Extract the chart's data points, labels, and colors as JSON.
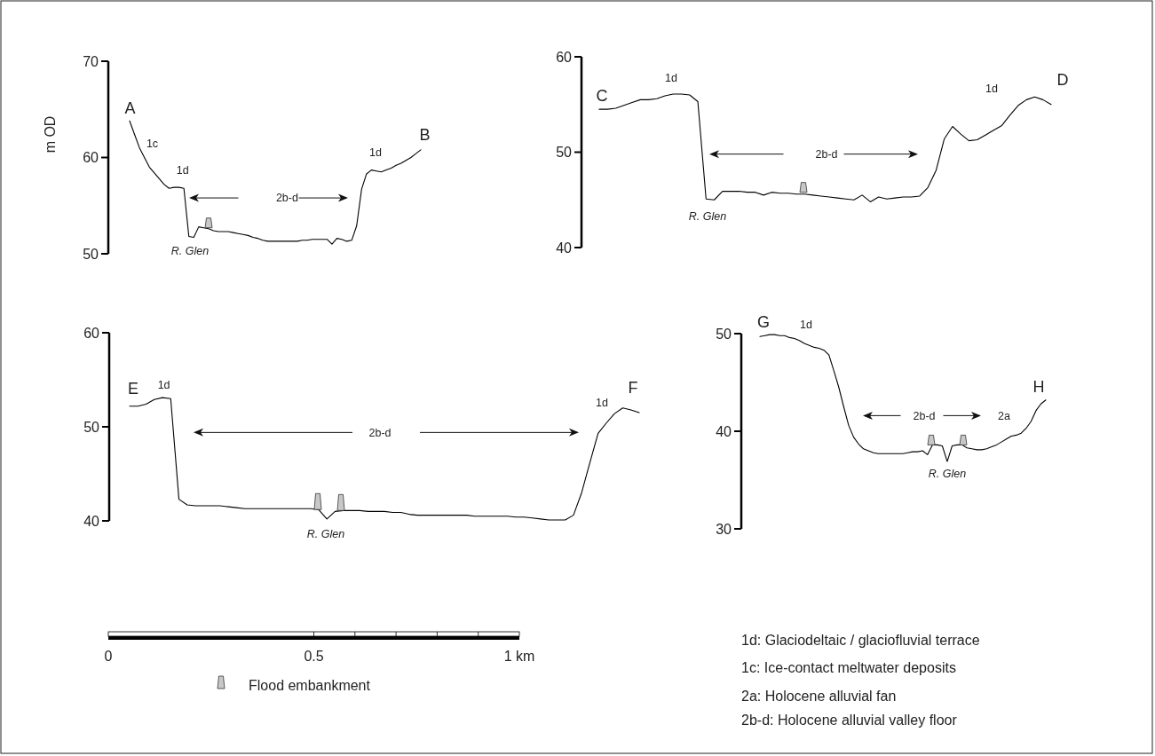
{
  "chart_data": [
    {
      "type": "line",
      "ylabel": "m OD",
      "ylim": [
        50,
        70
      ],
      "yticks": [
        50,
        60,
        70
      ],
      "tick_labels": "y",
      "marker": "none",
      "line_style": "solid",
      "categories": [
        null,
        null,
        null,
        null,
        null,
        null,
        null,
        null,
        null,
        null,
        null,
        null,
        null,
        null,
        null,
        null,
        null,
        null,
        null,
        null,
        null,
        null,
        null,
        null,
        null,
        null,
        null,
        null,
        null,
        null,
        null,
        null,
        null,
        null,
        null,
        null,
        null,
        null,
        null,
        null,
        null,
        null,
        null,
        null,
        null,
        null,
        null,
        null,
        null,
        null,
        null,
        null,
        null,
        null,
        null,
        null,
        null,
        null,
        null,
        null
      ],
      "series": [
        {
          "color": "#000000",
          "values": [
            63.8,
            62.4,
            61.0,
            60.0,
            59.0,
            58.4,
            57.8,
            57.2,
            56.8,
            56.9,
            56.9,
            56.8,
            51.8,
            51.7,
            52.8,
            52.7,
            52.6,
            52.4,
            52.3,
            52.3,
            52.3,
            52.2,
            52.1,
            52.0,
            51.9,
            51.7,
            51.6,
            51.4,
            51.3,
            51.3,
            51.3,
            51.3,
            51.3,
            51.3,
            51.3,
            51.4,
            51.4,
            51.5,
            51.5,
            51.5,
            51.5,
            51.0,
            51.6,
            51.5,
            51.3,
            51.4,
            52.9,
            56.7,
            58.3,
            58.7,
            58.6,
            58.5,
            58.7,
            58.9,
            59.2,
            59.4,
            59.7,
            60.0,
            60.4,
            60.8
          ]
        }
      ],
      "annotations": [
        "A",
        "1c",
        "1d",
        "2b-d",
        "1d",
        "B",
        "R. Glen"
      ]
    },
    {
      "type": "line",
      "ylim": [
        40,
        60
      ],
      "yticks": [
        40,
        50,
        60
      ],
      "tick_labels": "y",
      "marker": "none",
      "line_style": "solid",
      "categories": [
        null,
        null,
        null,
        null,
        null,
        null,
        null,
        null,
        null,
        null,
        null,
        null,
        null,
        null,
        null,
        null,
        null,
        null,
        null,
        null,
        null,
        null,
        null,
        null,
        null,
        null,
        null,
        null,
        null,
        null,
        null,
        null,
        null,
        null,
        null,
        null,
        null,
        null,
        null,
        null,
        null,
        null,
        null,
        null,
        null,
        null,
        null,
        null,
        null,
        null,
        null,
        null,
        null,
        null,
        null,
        null
      ],
      "series": [
        {
          "color": "#000000",
          "values": [
            54.5,
            54.5,
            54.6,
            54.9,
            55.2,
            55.5,
            55.5,
            55.6,
            55.9,
            56.1,
            56.1,
            56.0,
            55.3,
            45.1,
            45.0,
            45.9,
            45.9,
            45.9,
            45.8,
            45.8,
            45.5,
            45.8,
            45.7,
            45.7,
            45.6,
            45.6,
            45.5,
            45.4,
            45.3,
            45.2,
            45.1,
            45.0,
            45.5,
            44.8,
            45.3,
            45.1,
            45.2,
            45.3,
            45.3,
            45.4,
            46.3,
            48.1,
            51.4,
            52.7,
            51.9,
            51.2,
            51.3,
            51.8,
            52.3,
            52.8,
            53.9,
            54.9,
            55.5,
            55.8,
            55.5,
            55.0
          ]
        }
      ],
      "annotations": [
        "C",
        "1d",
        "2b-d",
        "1d",
        "D",
        "R. Glen"
      ]
    },
    {
      "type": "line",
      "ylim": [
        40,
        60
      ],
      "yticks": [
        40,
        50,
        60
      ],
      "tick_labels": "y",
      "marker": "none",
      "line_style": "solid",
      "categories": [
        null,
        null,
        null,
        null,
        null,
        null,
        null,
        null,
        null,
        null,
        null,
        null,
        null,
        null,
        null,
        null,
        null,
        null,
        null,
        null,
        null,
        null,
        null,
        null,
        null,
        null,
        null,
        null,
        null,
        null,
        null,
        null,
        null,
        null,
        null,
        null,
        null,
        null,
        null,
        null,
        null,
        null,
        null,
        null,
        null,
        null,
        null,
        null,
        null,
        null,
        null,
        null,
        null,
        null,
        null,
        null,
        null,
        null,
        null,
        null,
        null,
        null,
        null
      ],
      "series": [
        {
          "color": "#000000",
          "values": [
            52.2,
            52.2,
            52.4,
            52.9,
            53.1,
            53.0,
            42.3,
            41.7,
            41.6,
            41.6,
            41.6,
            41.6,
            41.5,
            41.4,
            41.3,
            41.3,
            41.3,
            41.3,
            41.3,
            41.3,
            41.3,
            41.3,
            41.3,
            41.2,
            40.2,
            41.0,
            41.1,
            41.1,
            41.1,
            41.0,
            41.0,
            41.0,
            40.9,
            40.9,
            40.7,
            40.6,
            40.6,
            40.6,
            40.6,
            40.6,
            40.6,
            40.6,
            40.5,
            40.5,
            40.5,
            40.5,
            40.5,
            40.4,
            40.4,
            40.3,
            40.2,
            40.1,
            40.1,
            40.1,
            40.6,
            43.0,
            46.2,
            49.3,
            50.4,
            51.4,
            52.0,
            51.8,
            51.5
          ]
        }
      ],
      "annotations": [
        "E",
        "1d",
        "2b-d",
        "1d",
        "F",
        "R. Glen"
      ]
    },
    {
      "type": "line",
      "ylim": [
        30,
        50
      ],
      "yticks": [
        30,
        40,
        50
      ],
      "tick_labels": "y",
      "marker": "none",
      "line_style": "solid",
      "categories": [
        null,
        null,
        null,
        null,
        null,
        null,
        null,
        null,
        null,
        null,
        null,
        null,
        null,
        null,
        null,
        null,
        null,
        null,
        null,
        null,
        null,
        null,
        null,
        null,
        null,
        null,
        null,
        null,
        null,
        null,
        null,
        null,
        null,
        null,
        null,
        null,
        null,
        null,
        null,
        null,
        null,
        null,
        null,
        null,
        null,
        null,
        null,
        null,
        null,
        null,
        null,
        null,
        null,
        null,
        null,
        null,
        null,
        null,
        null
      ],
      "series": [
        {
          "color": "#000000",
          "values": [
            49.7,
            49.8,
            49.9,
            49.9,
            49.8,
            49.8,
            49.6,
            49.5,
            49.3,
            49.0,
            48.8,
            48.6,
            48.5,
            48.3,
            47.8,
            46.2,
            44.5,
            42.5,
            40.6,
            39.4,
            38.7,
            38.2,
            38.0,
            37.8,
            37.7,
            37.7,
            37.7,
            37.7,
            37.7,
            37.7,
            37.8,
            37.9,
            37.9,
            38.0,
            37.6,
            38.6,
            38.6,
            38.5,
            36.9,
            38.5,
            38.6,
            38.6,
            38.3,
            38.2,
            38.1,
            38.1,
            38.2,
            38.4,
            38.6,
            38.9,
            39.2,
            39.5,
            39.6,
            39.8,
            40.3,
            41.0,
            42.1,
            42.8,
            43.2
          ]
        }
      ],
      "annotations": [
        "G",
        "1d",
        "2b-d",
        "2a",
        "H",
        "R. Glen"
      ]
    },
    {
      "type": "other",
      "annotations": [
        "0",
        "0.5",
        "1 km",
        "Flood embankment",
        "1d: Glaciodeltaic / glaciofluvial terrace",
        "1c: Ice-contact meltwater deposits",
        "2a: Holocene alluvial fan",
        "2b-d: Holocene alluvial valley floor"
      ]
    }
  ]
}
